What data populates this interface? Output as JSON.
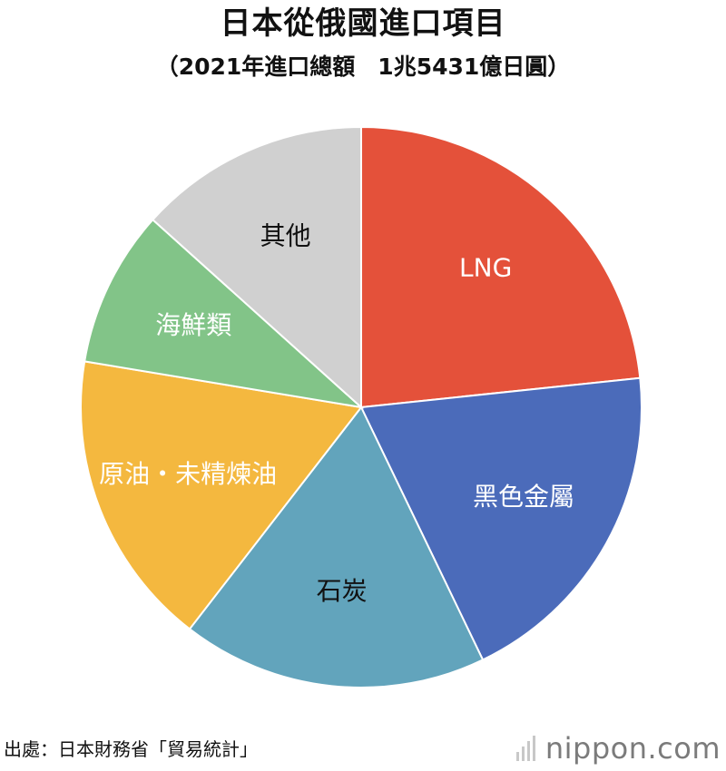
{
  "title": "日本從俄國進口項目",
  "subtitle": "（2021年進口總額　1兆5431億日圓）",
  "source": "出處：日本財務省「貿易統計」",
  "brand": "nippon.com",
  "brand_icon": "nippon-logo-icon",
  "chart_data": {
    "type": "pie",
    "start_angle_deg": 0,
    "direction": "clockwise",
    "categories": [
      "LNG",
      "黑色金屬",
      "石炭",
      "原油・未精煉油",
      "海鮮類",
      "其他"
    ],
    "values": [
      24.5,
      20.5,
      18.5,
      18.0,
      9.5,
      14.0
    ],
    "colors": [
      "#e4513a",
      "#4b6bba",
      "#62a4bc",
      "#f4b83f",
      "#82c488",
      "#d0d0d0"
    ],
    "label_colors": [
      "#ffffff",
      "#ffffff",
      "#111111",
      "#ffffff",
      "#ffffff",
      "#111111"
    ]
  }
}
